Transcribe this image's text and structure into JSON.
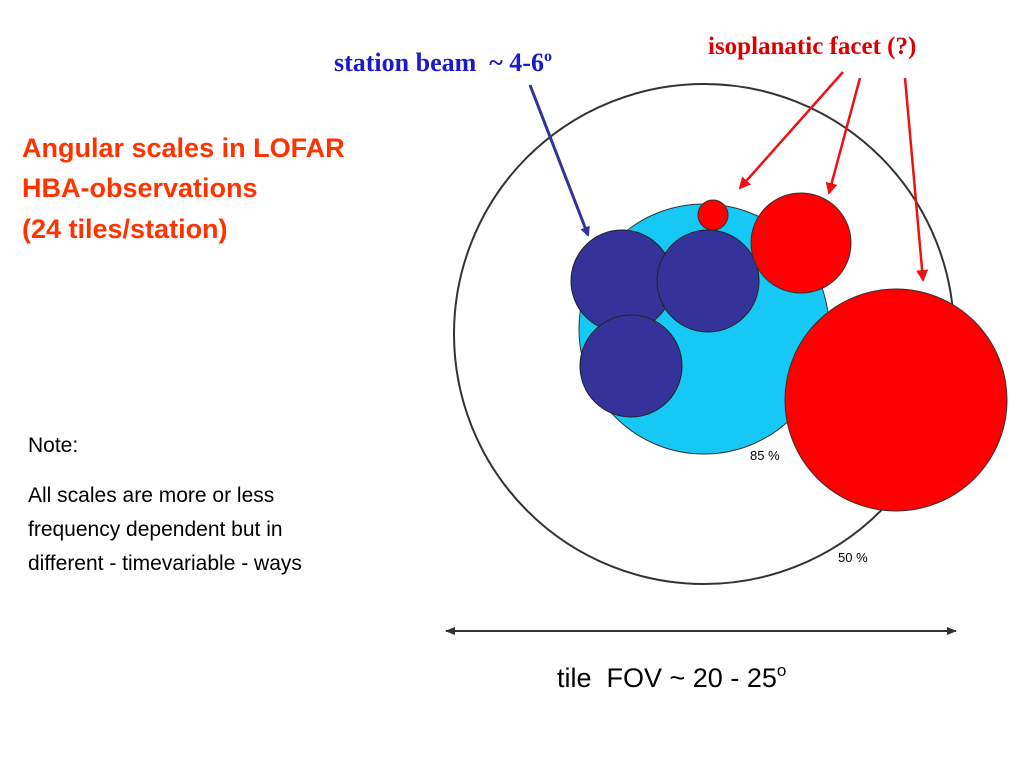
{
  "title": {
    "lines": [
      "Angular scales in LOFAR",
      "HBA-observations",
      "(24 tiles/station)"
    ]
  },
  "note": {
    "heading": "Note:",
    "lines": [
      "All scales are more or less",
      "frequency dependent but in",
      "different - timevariable - ways"
    ]
  },
  "labels": {
    "station_beam": "station beam  ~ 4-6",
    "station_beam_sup": "o",
    "isoplanatic_facet": "isoplanatic facet (?)",
    "inner_level": "85 %",
    "outer_level": "50 %",
    "tile_fov": "tile  FOV ~ 20 - 25",
    "tile_fov_sup": "o"
  }
}
